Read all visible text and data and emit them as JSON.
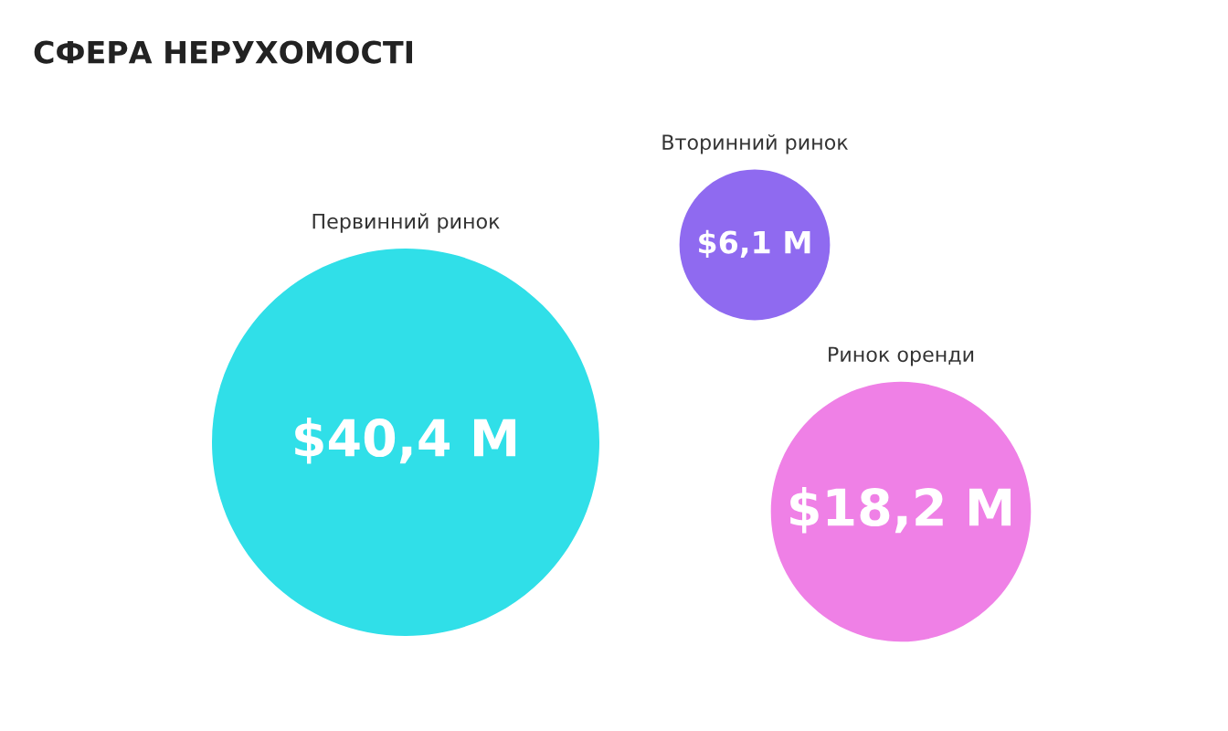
{
  "chart_data": {
    "type": "other",
    "title": "СФЕРА НЕРУХОМОСТІ",
    "categories": [
      "Первинний ринок",
      "Вторинний ринок",
      "Ринок оренди"
    ],
    "values": [
      40.4,
      6.1,
      18.2
    ],
    "value_labels": [
      "$40,4 M",
      "$6,1 M",
      "$18,2 M"
    ],
    "colors": [
      "#30dfe8",
      "#8f6af0",
      "#ef80e6"
    ]
  }
}
